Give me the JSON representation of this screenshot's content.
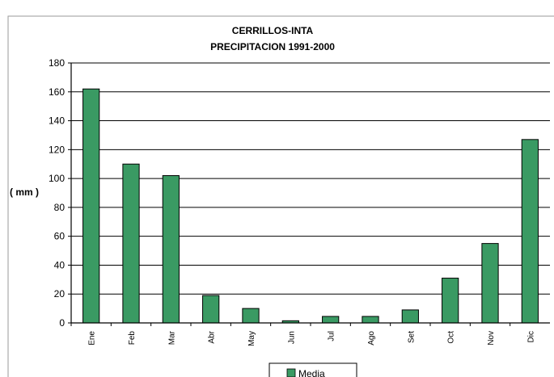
{
  "chart_data": {
    "type": "bar",
    "title": "CERRILLOS-INTA",
    "subtitle": "PRECIPITACION 1991-2000",
    "ylabel": "( mm )",
    "xlabel": "",
    "categories": [
      "Ene",
      "Feb",
      "Mar",
      "Abr",
      "May",
      "Jun",
      "Jul",
      "Ago",
      "Set",
      "Oct",
      "Nov",
      "Dic"
    ],
    "series": [
      {
        "name": "Media",
        "values": [
          162,
          110,
          102,
          19,
          10,
          1.5,
          4.5,
          4.5,
          9,
          31,
          55,
          127
        ]
      }
    ],
    "ylim": [
      0,
      180
    ],
    "yticks": [
      0,
      20,
      40,
      60,
      80,
      100,
      120,
      140,
      160,
      180
    ],
    "grid": true,
    "legend_position": "bottom",
    "colors": {
      "bar_fill": "#3a9a63",
      "bar_stroke": "#000000",
      "grid": "#000000",
      "frame": "#9a9a9a"
    }
  }
}
